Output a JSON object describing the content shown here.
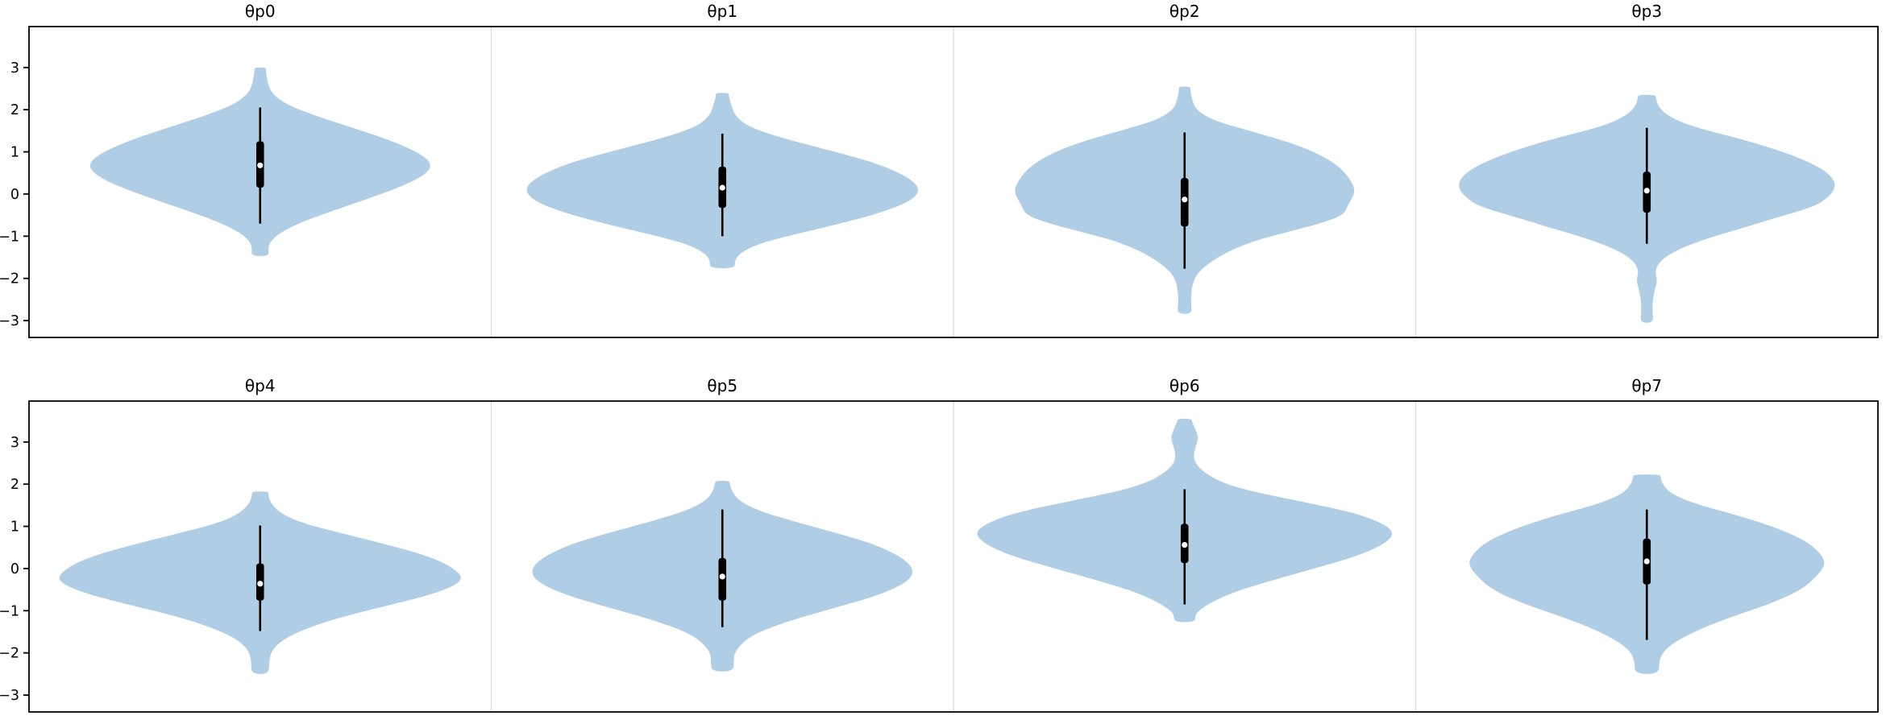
{
  "chart_data": {
    "type": "violin",
    "description": "Grid of 8 vertical violin plots with inner box-and-whisker markers",
    "layout": {
      "rows": 2,
      "cols": 4,
      "ylim": [
        -3.4,
        3.97
      ],
      "yticks": [
        -3,
        -2,
        -1,
        0,
        1,
        2,
        3
      ],
      "grid": false,
      "legend": null,
      "x_axis_labels": null
    },
    "colors": {
      "violin_fill": "#afcde4",
      "box": "#000000",
      "whisker": "#000000",
      "median_dot": "#ffffff",
      "spine": "#000000",
      "panel_separator": "#d9d9d9",
      "background": "#ffffff"
    },
    "panels": [
      {
        "title": "θp0",
        "row": 0,
        "col": 0,
        "box": {
          "whislo": -0.7,
          "q1": 0.15,
          "med": 0.68,
          "q3": 1.25,
          "whishi": 2.05
        },
        "profile": [
          [
            3.0,
            7
          ],
          [
            2.93,
            7
          ],
          [
            2.65,
            9
          ],
          [
            2.4,
            14
          ],
          [
            2.15,
            30
          ],
          [
            1.9,
            62
          ],
          [
            1.6,
            110
          ],
          [
            1.3,
            158
          ],
          [
            1.0,
            195
          ],
          [
            0.72,
            214
          ],
          [
            0.45,
            205
          ],
          [
            0.15,
            172
          ],
          [
            -0.15,
            128
          ],
          [
            -0.45,
            82
          ],
          [
            -0.7,
            47
          ],
          [
            -0.95,
            22
          ],
          [
            -1.15,
            12
          ],
          [
            -1.3,
            10
          ],
          [
            -1.47,
            11
          ]
        ]
      },
      {
        "title": "θp1",
        "row": 0,
        "col": 1,
        "box": {
          "whislo": -1.0,
          "q1": -0.33,
          "med": 0.15,
          "q3": 0.65,
          "whishi": 1.43
        },
        "profile": [
          [
            2.4,
            8
          ],
          [
            2.33,
            8
          ],
          [
            2.1,
            11
          ],
          [
            1.85,
            16
          ],
          [
            1.6,
            32
          ],
          [
            1.35,
            70
          ],
          [
            1.05,
            130
          ],
          [
            0.75,
            188
          ],
          [
            0.45,
            226
          ],
          [
            0.15,
            246
          ],
          [
            -0.15,
            236
          ],
          [
            -0.45,
            196
          ],
          [
            -0.75,
            136
          ],
          [
            -1.0,
            80
          ],
          [
            -1.2,
            42
          ],
          [
            -1.4,
            22
          ],
          [
            -1.58,
            15
          ],
          [
            -1.76,
            16
          ]
        ]
      },
      {
        "title": "θp2",
        "row": 0,
        "col": 2,
        "box": {
          "whislo": -1.77,
          "q1": -0.77,
          "med": -0.13,
          "q3": 0.38,
          "whishi": 1.46
        },
        "profile": [
          [
            2.55,
            7
          ],
          [
            2.48,
            7
          ],
          [
            2.25,
            9
          ],
          [
            2.0,
            14
          ],
          [
            1.75,
            35
          ],
          [
            1.5,
            80
          ],
          [
            1.2,
            135
          ],
          [
            0.9,
            172
          ],
          [
            0.6,
            195
          ],
          [
            0.3,
            207
          ],
          [
            0.05,
            212
          ],
          [
            -0.25,
            203
          ],
          [
            -0.5,
            197
          ],
          [
            -0.7,
            168
          ],
          [
            -0.9,
            128
          ],
          [
            -1.1,
            88
          ],
          [
            -1.35,
            55
          ],
          [
            -1.6,
            33
          ],
          [
            -1.85,
            17
          ],
          [
            -2.1,
            10
          ],
          [
            -2.4,
            8
          ],
          [
            -2.6,
            8
          ],
          [
            -2.84,
            9
          ]
        ]
      },
      {
        "title": "θp3",
        "row": 0,
        "col": 3,
        "box": {
          "whislo": -1.18,
          "q1": -0.44,
          "med": 0.08,
          "q3": 0.53,
          "whishi": 1.57
        },
        "profile": [
          [
            2.35,
            11
          ],
          [
            2.28,
            11
          ],
          [
            2.08,
            14
          ],
          [
            1.85,
            26
          ],
          [
            1.6,
            56
          ],
          [
            1.3,
            118
          ],
          [
            1.0,
            170
          ],
          [
            0.7,
            208
          ],
          [
            0.45,
            228
          ],
          [
            0.2,
            235
          ],
          [
            -0.05,
            227
          ],
          [
            -0.3,
            208
          ],
          [
            -0.55,
            162
          ],
          [
            -0.8,
            120
          ],
          [
            -1.05,
            75
          ],
          [
            -1.3,
            40
          ],
          [
            -1.55,
            18
          ],
          [
            -1.8,
            10
          ],
          [
            -2.05,
            13
          ],
          [
            -2.25,
            10
          ],
          [
            -2.55,
            7
          ],
          [
            -2.8,
            7
          ],
          [
            -3.05,
            8
          ]
        ]
      },
      {
        "title": "θp4",
        "row": 1,
        "col": 0,
        "box": {
          "whislo": -1.48,
          "q1": -0.76,
          "med": -0.36,
          "q3": 0.12,
          "whishi": 1.02
        },
        "profile": [
          [
            1.83,
            10
          ],
          [
            1.76,
            10
          ],
          [
            1.55,
            13
          ],
          [
            1.33,
            24
          ],
          [
            1.1,
            48
          ],
          [
            0.85,
            98
          ],
          [
            0.58,
            155
          ],
          [
            0.3,
            208
          ],
          [
            0.02,
            240
          ],
          [
            -0.28,
            254
          ],
          [
            -0.58,
            220
          ],
          [
            -0.88,
            158
          ],
          [
            -1.15,
            100
          ],
          [
            -1.45,
            53
          ],
          [
            -1.7,
            27
          ],
          [
            -1.95,
            14
          ],
          [
            -2.2,
            11
          ],
          [
            -2.5,
            11
          ]
        ]
      },
      {
        "title": "θp5",
        "row": 1,
        "col": 1,
        "box": {
          "whislo": -1.39,
          "q1": -0.76,
          "med": -0.19,
          "q3": 0.25,
          "whishi": 1.4
        },
        "profile": [
          [
            2.08,
            9
          ],
          [
            2.01,
            9
          ],
          [
            1.82,
            12
          ],
          [
            1.6,
            21
          ],
          [
            1.36,
            46
          ],
          [
            1.1,
            92
          ],
          [
            0.85,
            140
          ],
          [
            0.6,
            185
          ],
          [
            0.3,
            220
          ],
          [
            0.0,
            238
          ],
          [
            -0.3,
            232
          ],
          [
            -0.62,
            196
          ],
          [
            -0.92,
            142
          ],
          [
            -1.22,
            86
          ],
          [
            -1.5,
            45
          ],
          [
            -1.75,
            25
          ],
          [
            -2.0,
            15
          ],
          [
            -2.2,
            14
          ],
          [
            -2.44,
            14
          ]
        ]
      },
      {
        "title": "θp6",
        "row": 1,
        "col": 2,
        "box": {
          "whislo": -0.85,
          "q1": 0.13,
          "med": 0.56,
          "q3": 1.06,
          "whishi": 1.88
        },
        "profile": [
          [
            3.55,
            9
          ],
          [
            3.48,
            9
          ],
          [
            3.28,
            14
          ],
          [
            3.1,
            17
          ],
          [
            2.9,
            14
          ],
          [
            2.7,
            11
          ],
          [
            2.5,
            13
          ],
          [
            2.28,
            24
          ],
          [
            2.05,
            45
          ],
          [
            1.85,
            78
          ],
          [
            1.6,
            142
          ],
          [
            1.35,
            205
          ],
          [
            1.1,
            243
          ],
          [
            0.85,
            261
          ],
          [
            0.58,
            248
          ],
          [
            0.3,
            215
          ],
          [
            0.02,
            165
          ],
          [
            -0.28,
            108
          ],
          [
            -0.55,
            62
          ],
          [
            -0.8,
            33
          ],
          [
            -1.0,
            17
          ],
          [
            -1.12,
            13
          ],
          [
            -1.27,
            13
          ]
        ]
      },
      {
        "title": "θp7",
        "row": 1,
        "col": 3,
        "box": {
          "whislo": -1.69,
          "q1": -0.38,
          "med": 0.17,
          "q3": 0.71,
          "whishi": 1.4
        },
        "profile": [
          [
            2.23,
            17
          ],
          [
            2.16,
            17
          ],
          [
            1.98,
            20
          ],
          [
            1.76,
            31
          ],
          [
            1.52,
            62
          ],
          [
            1.25,
            115
          ],
          [
            0.95,
            163
          ],
          [
            0.65,
            198
          ],
          [
            0.35,
            216
          ],
          [
            0.1,
            222
          ],
          [
            -0.2,
            210
          ],
          [
            -0.5,
            192
          ],
          [
            -0.8,
            158
          ],
          [
            -1.1,
            112
          ],
          [
            -1.4,
            70
          ],
          [
            -1.7,
            38
          ],
          [
            -1.95,
            21
          ],
          [
            -2.2,
            15
          ],
          [
            -2.5,
            15
          ]
        ]
      }
    ]
  }
}
